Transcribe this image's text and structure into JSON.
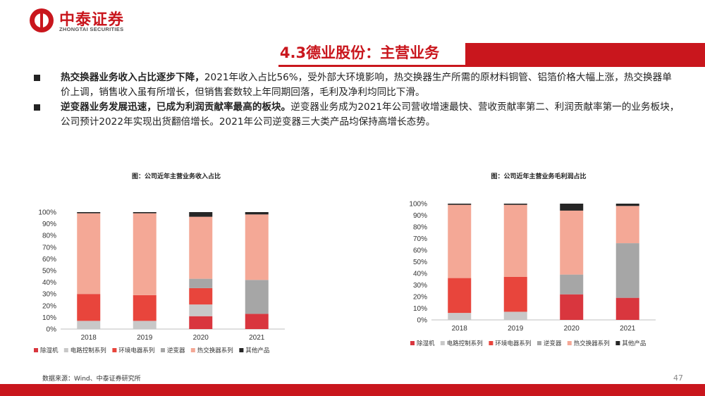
{
  "header": {
    "logo_cn": "中泰证券",
    "logo_en": "ZHONGTAI SECURITIES",
    "brand_color": "#c9161d"
  },
  "title": "4.3德业股份：主营业务",
  "bullets": [
    {
      "bold": "热交换器业务收入占比逐步下降，",
      "text": "2021年收入占比56%，受外部大环境影响，热交换器生产所需的原材料铜管、铝箔价格大幅上涨，热交换器单价上调，销售收入虽有所增长，但销售套数较上年同期回落，毛利及净利均同比下滑。"
    },
    {
      "bold": "逆变器业务发展迅速，已成为利润贡献率最高的板块。",
      "text": "逆变器业务成为2021年公司营收增速最快、营收贡献率第二、利润贡献率第一的业务板块，公司预计2022年实现出货翻倍增长。2021年公司逆变器三大类产品均保持高增长态势。"
    }
  ],
  "chart_data": [
    {
      "type": "bar",
      "stacked": true,
      "title": "图：公司近年主营业务收入占比",
      "categories": [
        "2018",
        "2019",
        "2020",
        "2021"
      ],
      "ylim": [
        0,
        100
      ],
      "yticks": [
        "0%",
        "10%",
        "20%",
        "30%",
        "40%",
        "50%",
        "60%",
        "70%",
        "80%",
        "90%",
        "100%"
      ],
      "grid": false,
      "legend_position": "bottom",
      "series": [
        {
          "name": "除湿机",
          "color": "#d9363e",
          "values": [
            0,
            0,
            11,
            13
          ]
        },
        {
          "name": "电路控制系列",
          "color": "#c8c8c8",
          "values": [
            7,
            7,
            10,
            0
          ]
        },
        {
          "name": "环境电器系列",
          "color": "#e8453c",
          "values": [
            23,
            22,
            14,
            0
          ]
        },
        {
          "name": "逆变器",
          "color": "#a6a6a6",
          "values": [
            0,
            0,
            8,
            29
          ]
        },
        {
          "name": "热交换器系列",
          "color": "#f4a896",
          "values": [
            69,
            70,
            53,
            56
          ]
        },
        {
          "name": "其他产品",
          "color": "#262626",
          "values": [
            1,
            1,
            4,
            2
          ]
        }
      ]
    },
    {
      "type": "bar",
      "stacked": true,
      "title": "图：公司近年主营业务毛利润占比",
      "categories": [
        "2018",
        "2019",
        "2020",
        "2021"
      ],
      "ylim": [
        0,
        100
      ],
      "yticks": [
        "0%",
        "10%",
        "20%",
        "30%",
        "40%",
        "50%",
        "60%",
        "70%",
        "80%",
        "90%",
        "100%"
      ],
      "grid": false,
      "legend_position": "bottom",
      "series": [
        {
          "name": "除湿机",
          "color": "#d9363e",
          "values": [
            0,
            0,
            22,
            19
          ]
        },
        {
          "name": "电路控制系列",
          "color": "#c8c8c8",
          "values": [
            6,
            7,
            0,
            0
          ]
        },
        {
          "name": "环境电器系列",
          "color": "#e8453c",
          "values": [
            30,
            30,
            0,
            0
          ]
        },
        {
          "name": "逆变器",
          "color": "#a6a6a6",
          "values": [
            0,
            0,
            17,
            47
          ]
        },
        {
          "name": "热交换器系列",
          "color": "#f4a896",
          "values": [
            63,
            62,
            55,
            32
          ]
        },
        {
          "name": "其他产品",
          "color": "#262626",
          "values": [
            1,
            1,
            6,
            2
          ]
        }
      ]
    }
  ],
  "footer": {
    "source": "数据来源：Wind、中泰证券研究所",
    "page_number": "47"
  }
}
